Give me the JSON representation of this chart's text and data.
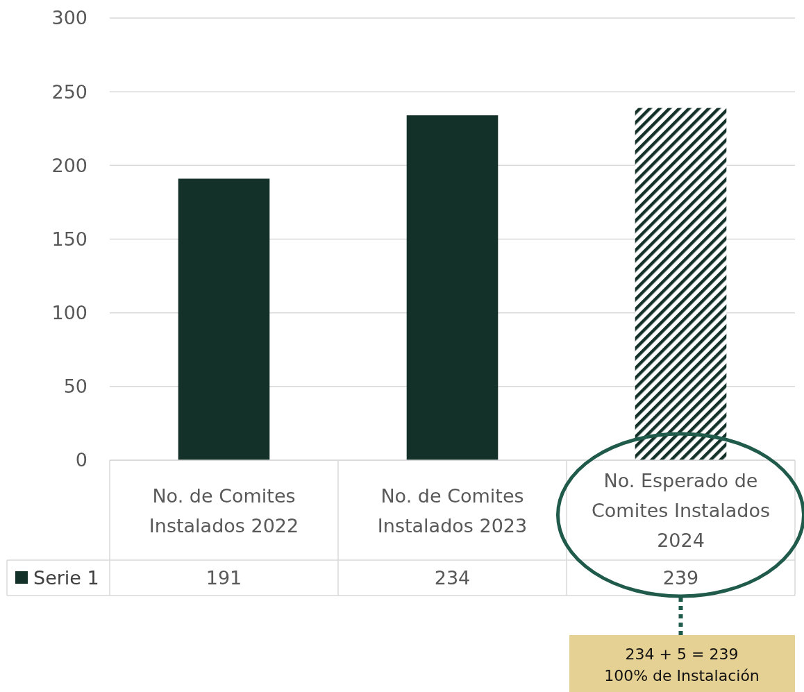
{
  "chart_data": {
    "type": "bar",
    "categories": [
      "No. de Comites Instalados 2022",
      "No. de Comites Instalados 2023",
      "No. Esperado de Comites Instalados 2024"
    ],
    "series": [
      {
        "name": "Serie 1",
        "color": "#133129",
        "values": [
          191,
          234,
          239
        ]
      }
    ],
    "ylim": [
      0,
      300
    ],
    "yticks": [
      0,
      50,
      100,
      150,
      200,
      250,
      300
    ],
    "grid": "y",
    "data_labels": true,
    "legend": "bottom",
    "annotations": [
      "234 + 5 = 239\n100% de Instalación"
    ]
  }
}
